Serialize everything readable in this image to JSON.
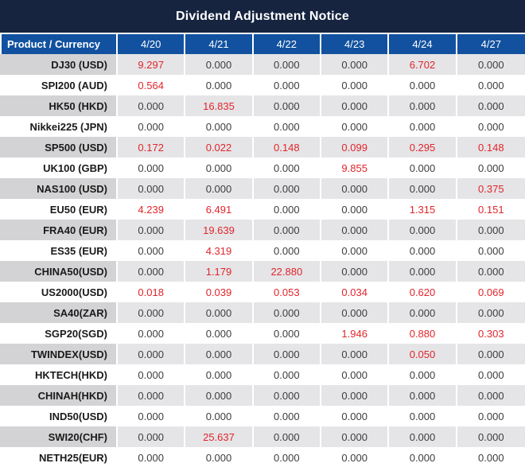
{
  "title": "Dividend Adjustment Notice",
  "colors": {
    "banner_bg": "#162440",
    "header_bg": "#11519f",
    "header_text": "#ffffff",
    "stripe_name_bg": "#d3d3d5",
    "stripe_value_bg": "#e5e5e7",
    "row_white_bg": "#ffffff",
    "value_text": "#3d3d3d",
    "value_highlight": "#e1252b",
    "product_text": "#1a1a1a"
  },
  "table": {
    "product_header": "Product / Currency",
    "date_columns": [
      "4/20",
      "4/21",
      "4/22",
      "4/23",
      "4/24",
      "4/27"
    ],
    "rows": [
      {
        "product": "DJ30 (USD)",
        "values": [
          "9.297",
          "0.000",
          "0.000",
          "0.000",
          "6.702",
          "0.000"
        ]
      },
      {
        "product": "SPI200 (AUD)",
        "values": [
          "0.564",
          "0.000",
          "0.000",
          "0.000",
          "0.000",
          "0.000"
        ]
      },
      {
        "product": "HK50 (HKD)",
        "values": [
          "0.000",
          "16.835",
          "0.000",
          "0.000",
          "0.000",
          "0.000"
        ]
      },
      {
        "product": "Nikkei225 (JPN)",
        "values": [
          "0.000",
          "0.000",
          "0.000",
          "0.000",
          "0.000",
          "0.000"
        ]
      },
      {
        "product": "SP500 (USD)",
        "values": [
          "0.172",
          "0.022",
          "0.148",
          "0.099",
          "0.295",
          "0.148"
        ]
      },
      {
        "product": "UK100 (GBP)",
        "values": [
          "0.000",
          "0.000",
          "0.000",
          "9.855",
          "0.000",
          "0.000"
        ]
      },
      {
        "product": "NAS100 (USD)",
        "values": [
          "0.000",
          "0.000",
          "0.000",
          "0.000",
          "0.000",
          "0.375"
        ]
      },
      {
        "product": "EU50 (EUR)",
        "values": [
          "4.239",
          "6.491",
          "0.000",
          "0.000",
          "1.315",
          "0.151"
        ]
      },
      {
        "product": "FRA40 (EUR)",
        "values": [
          "0.000",
          "19.639",
          "0.000",
          "0.000",
          "0.000",
          "0.000"
        ]
      },
      {
        "product": "ES35 (EUR)",
        "values": [
          "0.000",
          "4.319",
          "0.000",
          "0.000",
          "0.000",
          "0.000"
        ]
      },
      {
        "product": "CHINA50(USD)",
        "values": [
          "0.000",
          "1.179",
          "22.880",
          "0.000",
          "0.000",
          "0.000"
        ]
      },
      {
        "product": "US2000(USD)",
        "values": [
          "0.018",
          "0.039",
          "0.053",
          "0.034",
          "0.620",
          "0.069"
        ]
      },
      {
        "product": "SA40(ZAR)",
        "values": [
          "0.000",
          "0.000",
          "0.000",
          "0.000",
          "0.000",
          "0.000"
        ]
      },
      {
        "product": "SGP20(SGD)",
        "values": [
          "0.000",
          "0.000",
          "0.000",
          "1.946",
          "0.880",
          "0.303"
        ]
      },
      {
        "product": "TWINDEX(USD)",
        "values": [
          "0.000",
          "0.000",
          "0.000",
          "0.000",
          "0.050",
          "0.000"
        ]
      },
      {
        "product": "HKTECH(HKD)",
        "values": [
          "0.000",
          "0.000",
          "0.000",
          "0.000",
          "0.000",
          "0.000"
        ]
      },
      {
        "product": "CHINAH(HKD)",
        "values": [
          "0.000",
          "0.000",
          "0.000",
          "0.000",
          "0.000",
          "0.000"
        ]
      },
      {
        "product": "IND50(USD)",
        "values": [
          "0.000",
          "0.000",
          "0.000",
          "0.000",
          "0.000",
          "0.000"
        ]
      },
      {
        "product": "SWI20(CHF)",
        "values": [
          "0.000",
          "25.637",
          "0.000",
          "0.000",
          "0.000",
          "0.000"
        ]
      },
      {
        "product": "NETH25(EUR)",
        "values": [
          "0.000",
          "0.000",
          "0.000",
          "0.000",
          "0.000",
          "0.000"
        ]
      }
    ]
  }
}
